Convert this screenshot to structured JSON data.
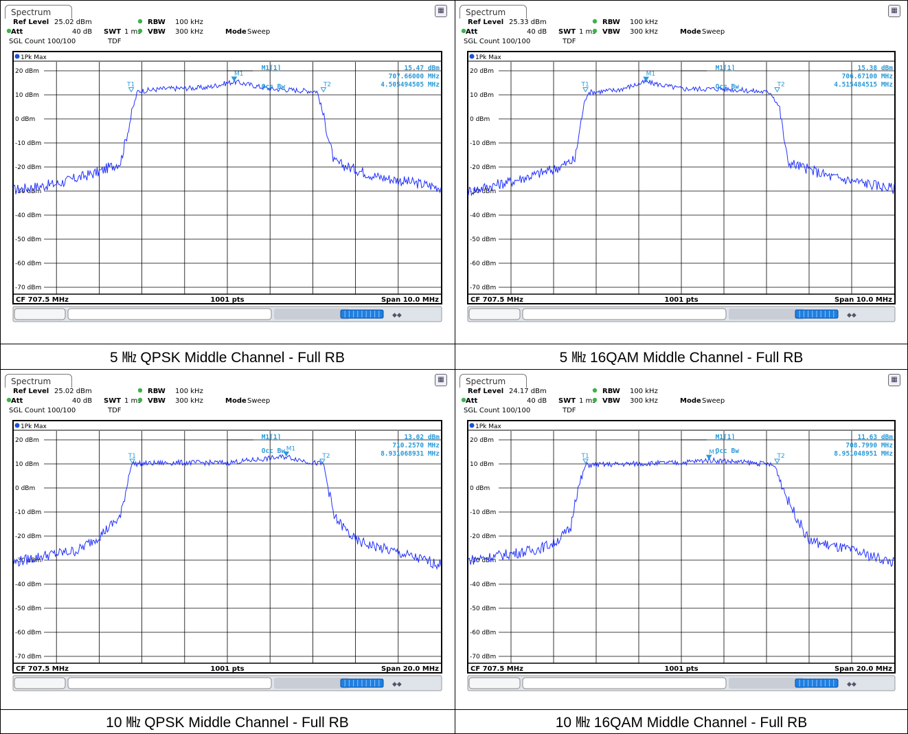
{
  "colors": {
    "trace": "#1f2fff",
    "marker": "#2a9ad8",
    "grid": "#000000",
    "dot_green": "#3cb24a",
    "dot_blue": "#1f4fd8"
  },
  "panels": [
    {
      "tab": "Spectrum",
      "ref_level_label": "Ref Level",
      "ref_level": "25.02 dBm",
      "att_label": "Att",
      "att": "40 dB",
      "swt_label": "SWT",
      "swt": "1 ms",
      "rbw_label": "RBW",
      "rbw": "100 kHz",
      "vbw_label": "VBW",
      "vbw": "300 kHz",
      "mode_label": "Mode",
      "mode": "Sweep",
      "sgl": "SGL Count 100/100",
      "tdf": "TDF",
      "trace_label": "1Pk Max",
      "m1_label": "M1[1]",
      "m1_level": "15.47 dBm",
      "m1_freq": "707.66000 MHz",
      "occbw_label": "Occ Bw",
      "occbw": "4.505494505 MHz",
      "cf": "CF 707.5 MHz",
      "pts": "1001 pts",
      "span": "Span 10.0 MHz",
      "caption": "5 ㎒ QPSK Middle Channel - Full RB"
    },
    {
      "tab": "Spectrum",
      "ref_level_label": "Ref Level",
      "ref_level": "25.33 dBm",
      "att_label": "Att",
      "att": "40 dB",
      "swt_label": "SWT",
      "swt": "1 ms",
      "rbw_label": "RBW",
      "rbw": "100 kHz",
      "vbw_label": "VBW",
      "vbw": "300 kHz",
      "mode_label": "Mode",
      "mode": "Sweep",
      "sgl": "SGL Count 100/100",
      "tdf": "TDF",
      "trace_label": "1Pk Max",
      "m1_label": "M1[1]",
      "m1_level": "15.38 dBm",
      "m1_freq": "706.67100 MHz",
      "occbw_label": "Occ Bw",
      "occbw": "4.515484515 MHz",
      "cf": "CF 707.5 MHz",
      "pts": "1001 pts",
      "span": "Span 10.0 MHz",
      "caption": "5 ㎒ 16QAM Middle Channel - Full RB"
    },
    {
      "tab": "Spectrum",
      "ref_level_label": "Ref Level",
      "ref_level": "25.02 dBm",
      "att_label": "Att",
      "att": "40 dB",
      "swt_label": "SWT",
      "swt": "1 ms",
      "rbw_label": "RBW",
      "rbw": "100 kHz",
      "vbw_label": "VBW",
      "vbw": "300 kHz",
      "mode_label": "Mode",
      "mode": "Sweep",
      "sgl": "SGL Count 100/100",
      "tdf": "TDF",
      "trace_label": "1Pk Max",
      "m1_label": "M1[1]",
      "m1_level": "13.02 dBm",
      "m1_freq": "710.2570 MHz",
      "occbw_label": "Occ Bw",
      "occbw": "8.931068931 MHz",
      "cf": "CF 707.5 MHz",
      "pts": "1001 pts",
      "span": "Span 20.0 MHz",
      "caption": "10 ㎒ QPSK Middle Channel - Full RB"
    },
    {
      "tab": "Spectrum",
      "ref_level_label": "Ref Level",
      "ref_level": "24.17 dBm",
      "att_label": "Att",
      "att": "40 dB",
      "swt_label": "SWT",
      "swt": "1 ms",
      "rbw_label": "RBW",
      "rbw": "100 kHz",
      "vbw_label": "VBW",
      "vbw": "300 kHz",
      "mode_label": "Mode",
      "mode": "Sweep",
      "sgl": "SGL Count 100/100",
      "tdf": "TDF",
      "trace_label": "1Pk Max",
      "m1_label": "M1[1]",
      "m1_level": "11.63 dBm",
      "m1_freq": "708.7990 MHz",
      "occbw_label": "Occ Bw",
      "occbw": "8.951048951 MHz",
      "cf": "CF 707.5 MHz",
      "pts": "1001 pts",
      "span": "Span 20.0 MHz",
      "caption": "10 ㎒ 16QAM Middle Channel - Full RB"
    }
  ],
  "chart_data": [
    {
      "type": "line",
      "title": "",
      "xlabel": "",
      "ylabel": "",
      "ylim": [
        -75,
        25
      ],
      "x_unit": "MHz",
      "xlim": [
        702.5,
        712.5
      ],
      "grid": true,
      "yticks": [
        "20 dBm",
        "10 dBm",
        "0 dBm",
        "-10 dBm",
        "-20 dBm",
        "-30 dBm",
        "-40 dBm",
        "-50 dBm",
        "-60 dBm",
        "-70 dBm"
      ],
      "x": [
        702.5,
        703.5,
        704.5,
        705.0,
        705.3,
        705.4,
        706.0,
        707.0,
        707.66,
        708.5,
        709.6,
        709.7,
        710.0,
        711.0,
        712.5
      ],
      "series": [
        {
          "values": [
            -29.5,
            -27,
            -22,
            -18,
            5,
            11.5,
            12.5,
            13,
            15.5,
            12.5,
            11.5,
            5,
            -18,
            -24,
            -28.5
          ]
        }
      ],
      "markers": [
        {
          "label": "T1",
          "x": 705.25,
          "y": 11
        },
        {
          "label": "M1",
          "x": 707.66,
          "y": 15.47
        },
        {
          "label": "T2",
          "x": 709.75,
          "y": 11
        }
      ]
    },
    {
      "type": "line",
      "title": "",
      "xlabel": "",
      "ylabel": "",
      "ylim": [
        -75,
        25
      ],
      "x_unit": "MHz",
      "xlim": [
        702.5,
        712.5
      ],
      "grid": true,
      "yticks": [
        "20 dBm",
        "10 dBm",
        "0 dBm",
        "-10 dBm",
        "-20 dBm",
        "-30 dBm",
        "-40 dBm",
        "-50 dBm",
        "-60 dBm",
        "-70 dBm"
      ],
      "x": [
        702.5,
        703.5,
        704.5,
        705.0,
        705.2,
        705.3,
        706.0,
        706.671,
        707.5,
        708.5,
        709.6,
        709.8,
        710.0,
        711.0,
        712.5
      ],
      "series": [
        {
          "values": [
            -30,
            -26,
            -21,
            -17,
            5,
            11,
            12,
            15.38,
            12.5,
            12.5,
            11,
            5,
            -18,
            -24,
            -29
          ]
        }
      ],
      "markers": [
        {
          "label": "T1",
          "x": 705.25,
          "y": 11
        },
        {
          "label": "M1",
          "x": 706.671,
          "y": 15.38
        },
        {
          "label": "T2",
          "x": 709.75,
          "y": 11
        }
      ]
    },
    {
      "type": "line",
      "title": "",
      "xlabel": "",
      "ylabel": "",
      "ylim": [
        -75,
        25
      ],
      "x_unit": "MHz",
      "xlim": [
        697.5,
        717.5
      ],
      "grid": true,
      "yticks": [
        "20 dBm",
        "10 dBm",
        "0 dBm",
        "-10 dBm",
        "-20 dBm",
        "-30 dBm",
        "-40 dBm",
        "-50 dBm",
        "-60 dBm",
        "-70 dBm"
      ],
      "x": [
        697.5,
        699.0,
        700.5,
        701.5,
        702.5,
        703.0,
        705.0,
        707.5,
        710.257,
        711.5,
        712.0,
        712.5,
        713.5,
        715.5,
        717.5
      ],
      "series": [
        {
          "values": [
            -31,
            -28,
            -26,
            -20,
            -12,
            10,
            10.5,
            10.5,
            13.02,
            10.5,
            10,
            -12,
            -22,
            -27,
            -32
          ]
        }
      ],
      "markers": [
        {
          "label": "T1",
          "x": 703.05,
          "y": 10
        },
        {
          "label": "M1",
          "x": 710.257,
          "y": 13.02
        },
        {
          "label": "T2",
          "x": 711.95,
          "y": 10
        }
      ]
    },
    {
      "type": "line",
      "title": "",
      "xlabel": "",
      "ylabel": "",
      "ylim": [
        -75,
        25
      ],
      "x_unit": "MHz",
      "xlim": [
        697.5,
        717.5
      ],
      "grid": true,
      "yticks": [
        "20 dBm",
        "10 dBm",
        "0 dBm",
        "-10 dBm",
        "-20 dBm",
        "-30 dBm",
        "-40 dBm",
        "-50 dBm",
        "-60 dBm",
        "-70 dBm"
      ],
      "x": [
        697.5,
        699.0,
        700.5,
        701.5,
        702.3,
        702.5,
        703.0,
        705.0,
        707.5,
        708.799,
        711.5,
        711.9,
        712.5,
        713.5,
        715.5,
        717.5
      ],
      "series": [
        {
          "values": [
            -30,
            -28,
            -26,
            -23,
            -17,
            -5,
            9.5,
            10,
            10.5,
            11.63,
            10,
            9,
            -5,
            -22,
            -26,
            -31
          ]
        }
      ],
      "markers": [
        {
          "label": "T1",
          "x": 703.0,
          "y": 10
        },
        {
          "label": "M1",
          "x": 708.799,
          "y": 11.63
        },
        {
          "label": "T2",
          "x": 712.0,
          "y": 10
        }
      ]
    }
  ]
}
